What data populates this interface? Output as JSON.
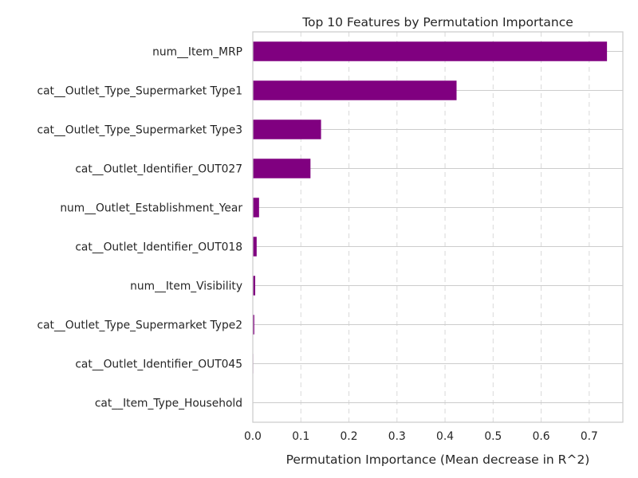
{
  "chart_data": {
    "type": "bar",
    "orientation": "horizontal",
    "title": "Top 10 Features by Permutation Importance",
    "xlabel": "Permutation Importance (Mean decrease in R^2)",
    "ylabel": "",
    "xlim": [
      0.0,
      0.77
    ],
    "xticks": [
      "0.0",
      "0.1",
      "0.2",
      "0.3",
      "0.4",
      "0.5",
      "0.6",
      "0.7"
    ],
    "categories": [
      "num__Item_MRP",
      "cat__Outlet_Type_Supermarket Type1",
      "cat__Outlet_Type_Supermarket Type3",
      "cat__Outlet_Identifier_OUT027",
      "num__Outlet_Establishment_Year",
      "cat__Outlet_Identifier_OUT018",
      "num__Item_Visibility",
      "cat__Outlet_Type_Supermarket Type2",
      "cat__Outlet_Identifier_OUT045",
      "cat__Item_Type_Household"
    ],
    "values": [
      0.737,
      0.424,
      0.142,
      0.12,
      0.013,
      0.008,
      0.005,
      0.003,
      0.001,
      0.0005
    ],
    "bar_color": "#800080",
    "grid": "x dashed, y solid",
    "legend": "none"
  }
}
